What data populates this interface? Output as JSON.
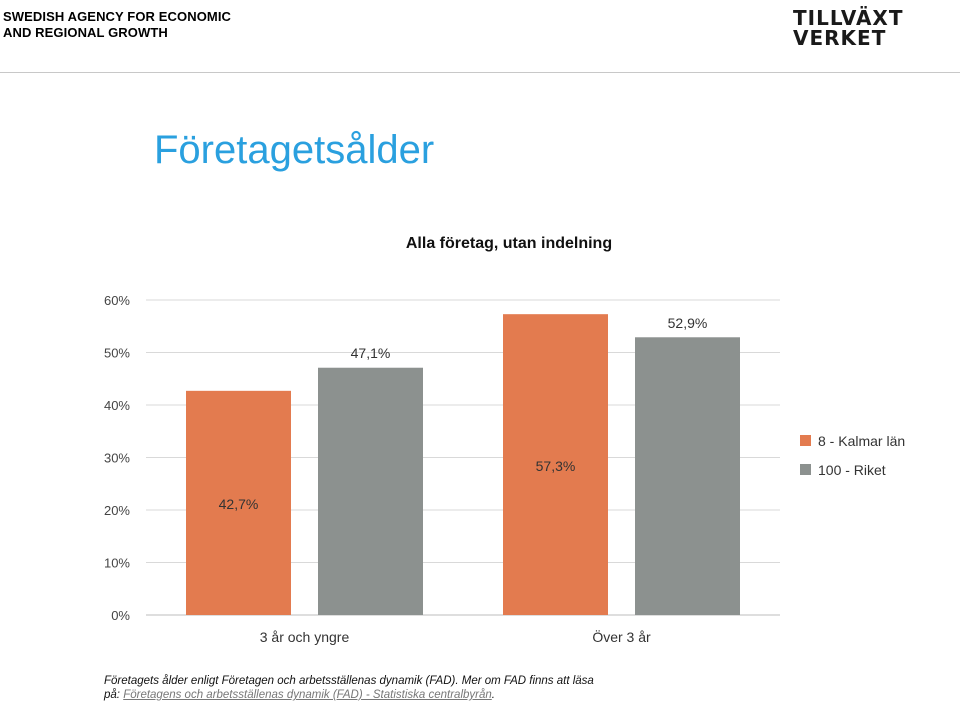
{
  "header": {
    "agency_line1": "SWEDISH AGENCY FOR ECONOMIC",
    "agency_line2": "AND REGIONAL GROWTH",
    "logo_line1": "TILLVÄXT",
    "logo_line2": "VERKET"
  },
  "page": {
    "title": "Företagetsålder"
  },
  "chart_data": {
    "type": "bar",
    "title": "Alla företag, utan indelning",
    "categories": [
      "3 år och yngre",
      "Över 3 år"
    ],
    "series": [
      {
        "name": "8 - Kalmar län",
        "values": [
          42.7,
          57.3
        ],
        "color": "#e37b4f"
      },
      {
        "name": "100 - Riket",
        "values": [
          47.1,
          52.9
        ],
        "color": "#8c918f"
      }
    ],
    "data_labels": [
      "42,7%",
      "47,1%",
      "57,3%",
      "52,9%"
    ],
    "yticks": [
      "0%",
      "10%",
      "20%",
      "30%",
      "40%",
      "50%",
      "60%"
    ],
    "ylim": [
      0,
      60
    ],
    "grid": true,
    "legend": "right"
  },
  "footnote": {
    "line1": "Företagets ålder enligt Företagen och arbetsställenas dynamik (FAD). Mer om FAD finns att läsa",
    "line2_prefix": "på: ",
    "link_text": "Företagens och arbetsställenas dynamik (FAD) - Statistiska centralbyrån",
    "line2_suffix": "."
  }
}
